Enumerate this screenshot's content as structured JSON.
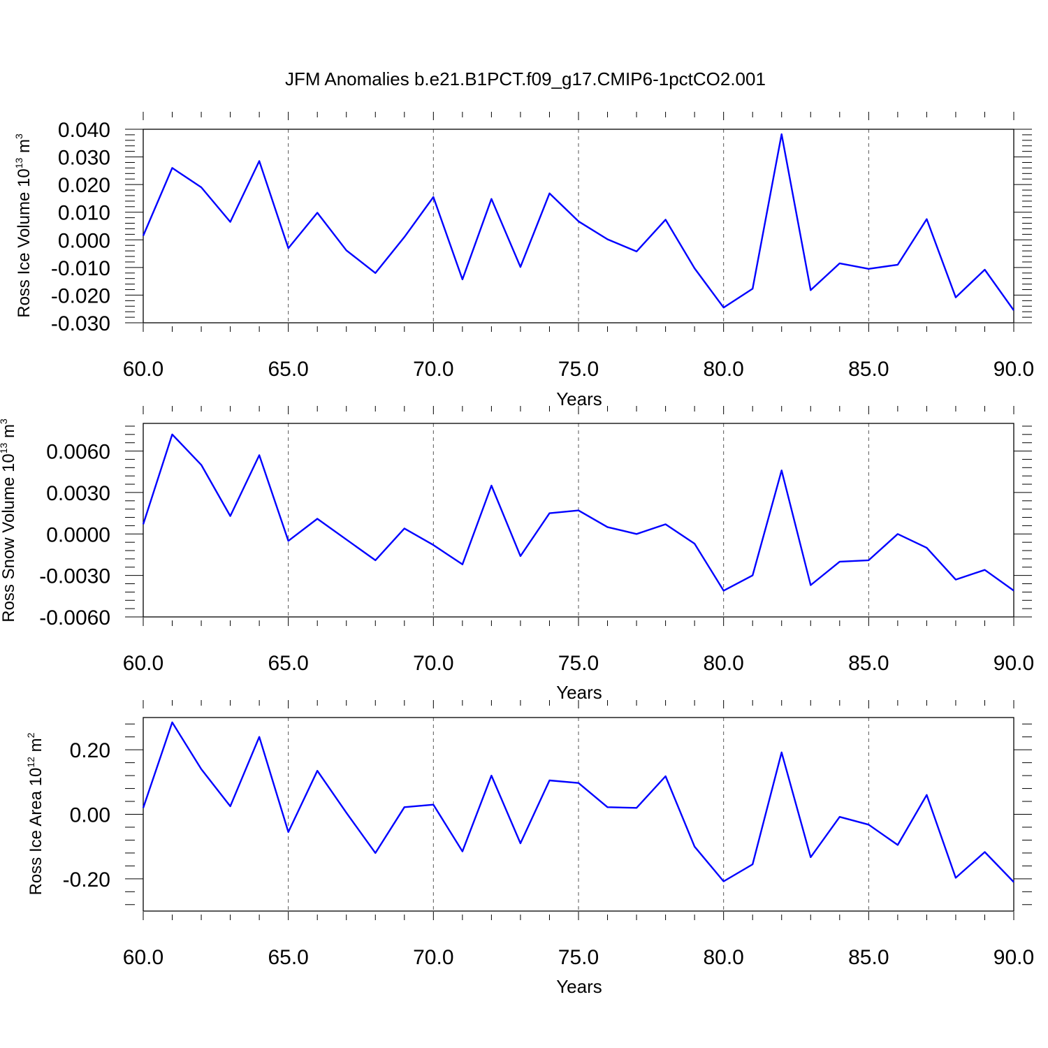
{
  "figure_title": "JFM Anomalies b.e21.B1PCT.f09_g17.CMIP6-1pctCO2.001",
  "colors": {
    "line": "#0000ff",
    "axis": "#000000",
    "grid": "#555555"
  },
  "chart_data": [
    {
      "type": "line",
      "title": "JFM Anomalies b.e21.B1PCT.f09_g17.CMIP6-1pctCO2.001",
      "xlabel": "Years",
      "ylabel_main": "Ross Ice Volume 10",
      "ylabel_exp": "13",
      "ylabel_unit": "m",
      "ylabel_unit_exp": "3",
      "xlim": [
        60,
        90
      ],
      "ylim": [
        -0.03,
        0.04
      ],
      "yticks": [
        -0.03,
        -0.02,
        -0.01,
        0.0,
        0.01,
        0.02,
        0.03,
        0.04
      ],
      "ytick_labels": [
        "-0.030",
        "-0.020",
        "-0.010",
        "0.000",
        "0.010",
        "0.020",
        "0.030",
        "0.040"
      ],
      "xticks": [
        60,
        65,
        70,
        75,
        80,
        85,
        90
      ],
      "xtick_labels": [
        "60.0",
        "65.0",
        "70.0",
        "75.0",
        "80.0",
        "85.0",
        "90.0"
      ],
      "grid_x": [
        65,
        70,
        75,
        80,
        85
      ],
      "x": [
        60,
        61,
        62,
        63,
        64,
        65,
        66,
        67,
        68,
        69,
        70,
        71,
        72,
        73,
        74,
        75,
        76,
        77,
        78,
        79,
        80,
        81,
        82,
        83,
        84,
        85,
        86,
        87,
        88,
        89,
        90
      ],
      "series": [
        {
          "name": "Ross Ice Volume",
          "values": [
            0.0015,
            0.026,
            0.019,
            0.0065,
            0.0285,
            -0.003,
            0.0098,
            -0.0038,
            -0.012,
            0.001,
            0.0155,
            -0.0143,
            0.0148,
            -0.0098,
            0.0168,
            0.0067,
            0.0002,
            -0.0042,
            0.0073,
            -0.0103,
            -0.0245,
            -0.0177,
            0.0382,
            -0.0182,
            -0.0085,
            -0.0105,
            -0.009,
            0.0075,
            -0.0208,
            -0.0108,
            -0.0255
          ]
        }
      ]
    },
    {
      "type": "line",
      "xlabel": "Years",
      "ylabel_main": "Ross Snow Volume 10",
      "ylabel_exp": "13",
      "ylabel_unit": "m",
      "ylabel_unit_exp": "3",
      "xlim": [
        60,
        90
      ],
      "ylim": [
        -0.006,
        0.008
      ],
      "yticks": [
        -0.006,
        -0.003,
        0.0,
        0.003,
        0.006
      ],
      "ytick_labels": [
        "-0.0060",
        "-0.0030",
        "0.0000",
        "0.0030",
        "0.0060"
      ],
      "xticks": [
        60,
        65,
        70,
        75,
        80,
        85,
        90
      ],
      "xtick_labels": [
        "60.0",
        "65.0",
        "70.0",
        "75.0",
        "80.0",
        "85.0",
        "90.0"
      ],
      "grid_x": [
        65,
        70,
        75,
        80,
        85
      ],
      "x": [
        60,
        61,
        62,
        63,
        64,
        65,
        66,
        67,
        68,
        69,
        70,
        71,
        72,
        73,
        74,
        75,
        76,
        77,
        78,
        79,
        80,
        81,
        82,
        83,
        84,
        85,
        86,
        87,
        88,
        89,
        90
      ],
      "series": [
        {
          "name": "Ross Snow Volume",
          "values": [
            0.0007,
            0.0072,
            0.005,
            0.0013,
            0.0057,
            -0.0005,
            0.0011,
            -0.0004,
            -0.0019,
            0.0004,
            -0.0008,
            -0.0022,
            0.0035,
            -0.0016,
            0.0015,
            0.0017,
            0.0005,
            0.0,
            0.0007,
            -0.0007,
            -0.0041,
            -0.003,
            0.0046,
            -0.0037,
            -0.002,
            -0.0019,
            0.0,
            -0.001,
            -0.0033,
            -0.0026,
            -0.0041
          ]
        }
      ]
    },
    {
      "type": "line",
      "xlabel": "Years",
      "ylabel_main": "Ross Ice Area 10",
      "ylabel_exp": "12",
      "ylabel_unit": "m",
      "ylabel_unit_exp": "2",
      "xlim": [
        60,
        90
      ],
      "ylim": [
        -0.3,
        0.3
      ],
      "yticks": [
        -0.2,
        0.0,
        0.2
      ],
      "ytick_labels": [
        "-0.20",
        "0.00",
        "0.20"
      ],
      "xticks": [
        60,
        65,
        70,
        75,
        80,
        85,
        90
      ],
      "xtick_labels": [
        "60.0",
        "65.0",
        "70.0",
        "75.0",
        "80.0",
        "85.0",
        "90.0"
      ],
      "grid_x": [
        65,
        70,
        75,
        80,
        85
      ],
      "x": [
        60,
        61,
        62,
        63,
        64,
        65,
        66,
        67,
        68,
        69,
        70,
        71,
        72,
        73,
        74,
        75,
        76,
        77,
        78,
        79,
        80,
        81,
        82,
        83,
        84,
        85,
        86,
        87,
        88,
        89,
        90
      ],
      "series": [
        {
          "name": "Ross Ice Area",
          "values": [
            0.02,
            0.285,
            0.14,
            0.025,
            0.24,
            -0.055,
            0.135,
            0.005,
            -0.12,
            0.022,
            0.03,
            -0.115,
            0.12,
            -0.09,
            0.105,
            0.097,
            0.022,
            0.02,
            0.118,
            -0.1,
            -0.208,
            -0.155,
            0.192,
            -0.133,
            -0.008,
            -0.032,
            -0.095,
            0.06,
            -0.197,
            -0.117,
            -0.21
          ]
        }
      ]
    }
  ]
}
